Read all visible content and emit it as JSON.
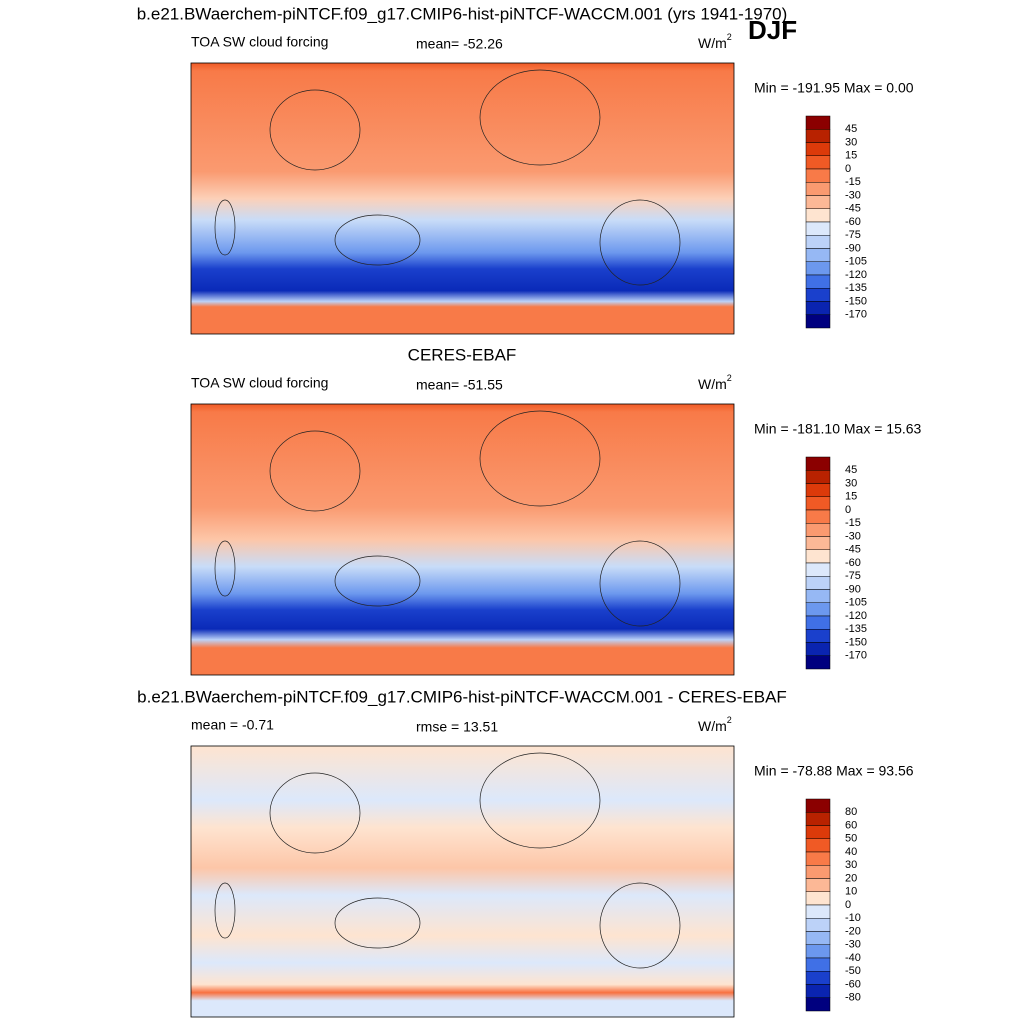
{
  "season": "DJF",
  "panels": [
    {
      "title": "b.e21.BWaerchem-piNTCF.f09_g17.CMIP6-hist-piNTCF-WACCM.001 (yrs 1941-1970)",
      "left": "TOA SW cloud forcing",
      "center": "mean= -52.26",
      "units": "W/m",
      "units_power": "2",
      "minmax": "Min = -191.95 Max =   0.00",
      "colorbar": [
        45,
        30,
        15,
        0,
        -15,
        -30,
        -45,
        -60,
        -75,
        -90,
        -105,
        -120,
        -135,
        -150,
        -170
      ]
    },
    {
      "title": "CERES-EBAF",
      "left": "TOA SW cloud forcing",
      "center": "mean= -51.55",
      "units": "W/m",
      "units_power": "2",
      "minmax": "Min = -181.10 Max =  15.63",
      "colorbar": [
        45,
        30,
        15,
        0,
        -15,
        -30,
        -45,
        -60,
        -75,
        -90,
        -105,
        -120,
        -135,
        -150,
        -170
      ]
    },
    {
      "title": "b.e21.BWaerchem-piNTCF.f09_g17.CMIP6-hist-piNTCF-WACCM.001 - CERES-EBAF",
      "left": "mean =  -0.71",
      "center": "rmse =  13.51",
      "units": "W/m",
      "units_power": "2",
      "minmax": "Min = -78.88 Max =  93.56",
      "colorbar": [
        80,
        60,
        50,
        40,
        30,
        20,
        10,
        0,
        -10,
        -20,
        -30,
        -40,
        -50,
        -60,
        -80
      ]
    }
  ]
}
